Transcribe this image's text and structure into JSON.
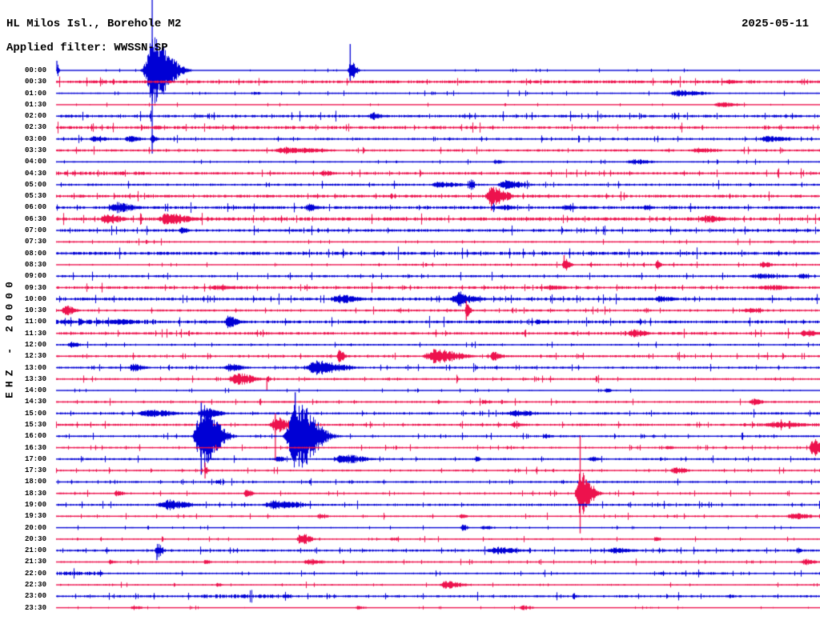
{
  "header": {
    "station_line": "HL Milos Isl., Borehole M2",
    "filter_line": "Applied filter: WWSSN-SP",
    "date": "2025-05-11"
  },
  "y_axis_label": "EHZ - 20000",
  "colors": {
    "even_trace_blue": "#0000D5",
    "odd_trace_red": "#ED124D",
    "text": "#000000",
    "background": "#FFFFFF"
  },
  "chart_data": {
    "type": "line",
    "subtype": "helicorder-seismogram",
    "title": "HL Milos Isl., Borehole M2",
    "filter": "WWSSN-SP",
    "date": "2025-05-11",
    "channel_scale": "EHZ - 20000",
    "minutes_per_row": 30,
    "row_count": 48,
    "legend": "rows alternate blue (on the hour) and red (on the half hour)",
    "event_format": "[time_fraction_of_row, amplitude_px, half_width_px, clip_up_px, clip_down_px]",
    "noise_segment_format": "[start_fraction, end_fraction, noise_multiplier]",
    "rows": [
      {
        "t": "00:00",
        "noise": 0.5,
        "events": [
          [
            0.001,
            9,
            1,
            12,
            0
          ],
          [
            0.1258,
            42,
            10,
            88,
            104
          ],
          [
            0.385,
            13,
            3,
            33,
            13
          ]
        ]
      },
      {
        "t": "00:30",
        "noise": 1.3,
        "events": [
          [
            0.88,
            3.5,
            4
          ]
        ]
      },
      {
        "t": "01:00",
        "noise": 0.7,
        "events": [
          [
            0.26,
            2.5,
            3
          ],
          [
            0.815,
            4,
            14
          ]
        ]
      },
      {
        "t": "01:30",
        "noise": 0.5,
        "events": [
          [
            0.87,
            3.5,
            10
          ]
        ]
      },
      {
        "t": "02:00",
        "noise": 1.2,
        "events": [
          [
            0.414,
            5,
            5
          ]
        ]
      },
      {
        "t": "02:30",
        "noise": 1.1,
        "seg": [
          [
            0,
            0.55,
            1.25
          ]
        ],
        "events": [
          [
            0.13,
            3,
            4
          ]
        ]
      },
      {
        "t": "03:00",
        "noise": 1.0,
        "events": [
          [
            0.05,
            3.5,
            8
          ],
          [
            0.095,
            4,
            6
          ],
          [
            0.125,
            5,
            3
          ],
          [
            0.93,
            4,
            12
          ]
        ]
      },
      {
        "t": "03:30",
        "noise": 1.0,
        "events": [
          [
            0.3,
            4,
            20
          ],
          [
            0.84,
            3.5,
            10
          ]
        ]
      },
      {
        "t": "04:00",
        "noise": 0.7,
        "events": [
          [
            0.575,
            3,
            4
          ],
          [
            0.755,
            3.5,
            10
          ]
        ]
      },
      {
        "t": "04:30",
        "noise": 1.1,
        "seg": [
          [
            0,
            0.12,
            1.5
          ]
        ],
        "events": [
          [
            0.35,
            4,
            5
          ]
        ]
      },
      {
        "t": "05:00",
        "noise": 1.0,
        "events": [
          [
            0.5,
            4,
            12
          ],
          [
            0.542,
            8,
            2
          ],
          [
            0.587,
            6,
            10
          ]
        ]
      },
      {
        "t": "05:30",
        "noise": 1.3,
        "events": [
          [
            0.57,
            12,
            8,
            0,
            18
          ]
        ]
      },
      {
        "t": "06:00",
        "noise": 1.3,
        "events": [
          [
            0.077,
            7,
            10
          ],
          [
            0.33,
            5,
            5
          ],
          [
            0.585,
            3.5,
            8
          ],
          [
            0.665,
            3.5,
            6
          ],
          [
            0.77,
            3.5,
            4
          ]
        ]
      },
      {
        "t": "06:30",
        "noise": 1.5,
        "events": [
          [
            0.065,
            7,
            8
          ],
          [
            0.145,
            8,
            12
          ],
          [
            0.85,
            5,
            9
          ]
        ]
      },
      {
        "t": "07:00",
        "noise": 1.2,
        "events": [
          [
            0.163,
            4,
            4
          ]
        ]
      },
      {
        "t": "07:30",
        "noise": 0.8,
        "events": []
      },
      {
        "t": "08:00",
        "noise": 1.4,
        "events": []
      },
      {
        "t": "08:30",
        "noise": 0.9,
        "seg": [
          [
            0,
            0.4,
            0.7
          ]
        ],
        "events": [
          [
            0.665,
            8,
            3,
            12,
            0
          ],
          [
            0.786,
            7,
            2
          ],
          [
            0.925,
            4,
            5
          ]
        ]
      },
      {
        "t": "09:00",
        "noise": 1.0,
        "events": [
          [
            0.92,
            3.5,
            14
          ],
          [
            0.975,
            3.5,
            4
          ]
        ]
      },
      {
        "t": "09:30",
        "noise": 1.2,
        "events": [
          [
            0.21,
            3,
            14
          ],
          [
            0.645,
            3,
            10
          ],
          [
            0.93,
            3.5,
            14
          ]
        ]
      },
      {
        "t": "10:00",
        "noise": 1.3,
        "events": [
          [
            0.37,
            6,
            10
          ],
          [
            0.525,
            7,
            10
          ],
          [
            0.527,
            12,
            2
          ],
          [
            0.79,
            4,
            8
          ]
        ]
      },
      {
        "t": "10:30",
        "noise": 1.0,
        "events": [
          [
            0.012,
            7,
            5
          ],
          [
            0.537,
            9,
            2,
            12,
            12
          ],
          [
            0.905,
            3.5,
            8
          ]
        ]
      },
      {
        "t": "11:00",
        "noise": 1.3,
        "seg": [
          [
            0,
            0.13,
            1.6
          ]
        ],
        "events": [
          [
            0.03,
            6,
            2
          ],
          [
            0.08,
            4,
            10
          ],
          [
            0.225,
            8,
            5
          ],
          [
            0.63,
            3,
            5
          ]
        ]
      },
      {
        "t": "11:30",
        "noise": 1.2,
        "events": [
          [
            0.755,
            5,
            8
          ],
          [
            0.98,
            5,
            6
          ]
        ]
      },
      {
        "t": "12:00",
        "noise": 0.8,
        "events": [
          [
            0.018,
            4,
            5
          ]
        ]
      },
      {
        "t": "12:30",
        "noise": 1.0,
        "events": [
          [
            0.37,
            8,
            3
          ],
          [
            0.495,
            9,
            14
          ],
          [
            0.572,
            6,
            5
          ]
        ]
      },
      {
        "t": "13:00",
        "noise": 1.0,
        "events": [
          [
            0.1,
            5,
            6
          ],
          [
            0.225,
            5,
            8
          ],
          [
            0.34,
            9,
            14
          ]
        ]
      },
      {
        "t": "13:30",
        "noise": 0.9,
        "events": [
          [
            0.236,
            8,
            9
          ],
          [
            0.276,
            5,
            1.5,
            0,
            14
          ]
        ]
      },
      {
        "t": "14:00",
        "noise": 0.6,
        "events": [
          [
            0.72,
            3,
            3
          ]
        ]
      },
      {
        "t": "14:30",
        "noise": 0.9,
        "events": [
          [
            0.56,
            3,
            4
          ],
          [
            0.912,
            4,
            6
          ]
        ]
      },
      {
        "t": "15:00",
        "noise": 1.0,
        "events": [
          [
            0.12,
            5,
            14
          ],
          [
            0.195,
            7,
            8,
            0,
            20
          ],
          [
            0.6,
            4,
            12
          ]
        ]
      },
      {
        "t": "15:30",
        "noise": 1.0,
        "seg": [
          [
            0.9,
            1,
            1.6
          ]
        ],
        "events": [
          [
            0.287,
            10,
            7,
            14,
            45
          ],
          [
            0.6,
            3,
            6
          ],
          [
            0.94,
            4,
            16
          ]
        ]
      },
      {
        "t": "16:00",
        "noise": 0.9,
        "events": [
          [
            0.19,
            40,
            9,
            42,
            48
          ],
          [
            0.313,
            45,
            11,
            55,
            30
          ],
          [
            0.64,
            3,
            4
          ]
        ]
      },
      {
        "t": "16:30",
        "noise": 0.8,
        "events": [
          [
            0.8,
            2.5,
            4
          ],
          [
            0.99,
            12,
            4
          ]
        ]
      },
      {
        "t": "17:00",
        "noise": 0.9,
        "events": [
          [
            0.29,
            4,
            4
          ],
          [
            0.375,
            6,
            12
          ],
          [
            0.55,
            5,
            2
          ],
          [
            0.7,
            3,
            4
          ]
        ]
      },
      {
        "t": "17:30",
        "noise": 0.8,
        "events": [
          [
            0.195,
            6,
            1.5,
            10,
            10
          ],
          [
            0.81,
            5,
            6
          ]
        ]
      },
      {
        "t": "18:00",
        "noise": 0.9,
        "events": [
          [
            0.21,
            3,
            2
          ]
        ]
      },
      {
        "t": "18:30",
        "noise": 0.8,
        "events": [
          [
            0.079,
            4,
            4
          ],
          [
            0.248,
            7,
            3
          ],
          [
            0.686,
            28,
            6,
            72,
            50
          ]
        ]
      },
      {
        "t": "19:00",
        "noise": 1.0,
        "events": [
          [
            0.143,
            7,
            12
          ],
          [
            0.285,
            6,
            14
          ]
        ]
      },
      {
        "t": "19:30",
        "noise": 0.8,
        "events": [
          [
            0.345,
            4,
            4
          ],
          [
            0.53,
            3,
            3
          ],
          [
            0.965,
            4,
            10
          ]
        ]
      },
      {
        "t": "20:00",
        "noise": 0.6,
        "events": [
          [
            0.532,
            4,
            3
          ],
          [
            0.56,
            2.5,
            6
          ]
        ]
      },
      {
        "t": "20:30",
        "noise": 0.7,
        "events": [
          [
            0.32,
            8,
            5
          ],
          [
            0.44,
            2.5,
            4
          ],
          [
            0.785,
            2.5,
            3
          ]
        ]
      },
      {
        "t": "21:00",
        "noise": 1.0,
        "events": [
          [
            0.132,
            9,
            3,
            0,
            12
          ],
          [
            0.575,
            5,
            12
          ],
          [
            0.73,
            4,
            10
          ],
          [
            0.97,
            4,
            2
          ]
        ]
      },
      {
        "t": "21:30",
        "noise": 0.8,
        "events": [
          [
            0.07,
            3,
            3
          ],
          [
            0.195,
            3,
            3
          ],
          [
            0.33,
            4,
            8
          ],
          [
            0.98,
            4,
            6
          ]
        ]
      },
      {
        "t": "22:00",
        "noise": 0.8,
        "seg": [
          [
            0,
            0.06,
            2.2
          ],
          [
            0.78,
            0.88,
            1.5
          ]
        ],
        "events": []
      },
      {
        "t": "22:30",
        "noise": 0.7,
        "events": [
          [
            0.21,
            2.5,
            3
          ],
          [
            0.51,
            5,
            9
          ]
        ]
      },
      {
        "t": "23:00",
        "noise": 1.0,
        "seg": [
          [
            0.19,
            0.31,
            1.8
          ]
        ],
        "events": [
          [
            0.677,
            4,
            2
          ],
          [
            0.88,
            2.5,
            4
          ]
        ]
      },
      {
        "t": "23:30",
        "noise": 0.5,
        "events": [
          [
            0.1,
            3,
            5
          ],
          [
            0.395,
            2.5,
            4
          ],
          [
            0.61,
            3,
            6
          ]
        ]
      }
    ]
  }
}
